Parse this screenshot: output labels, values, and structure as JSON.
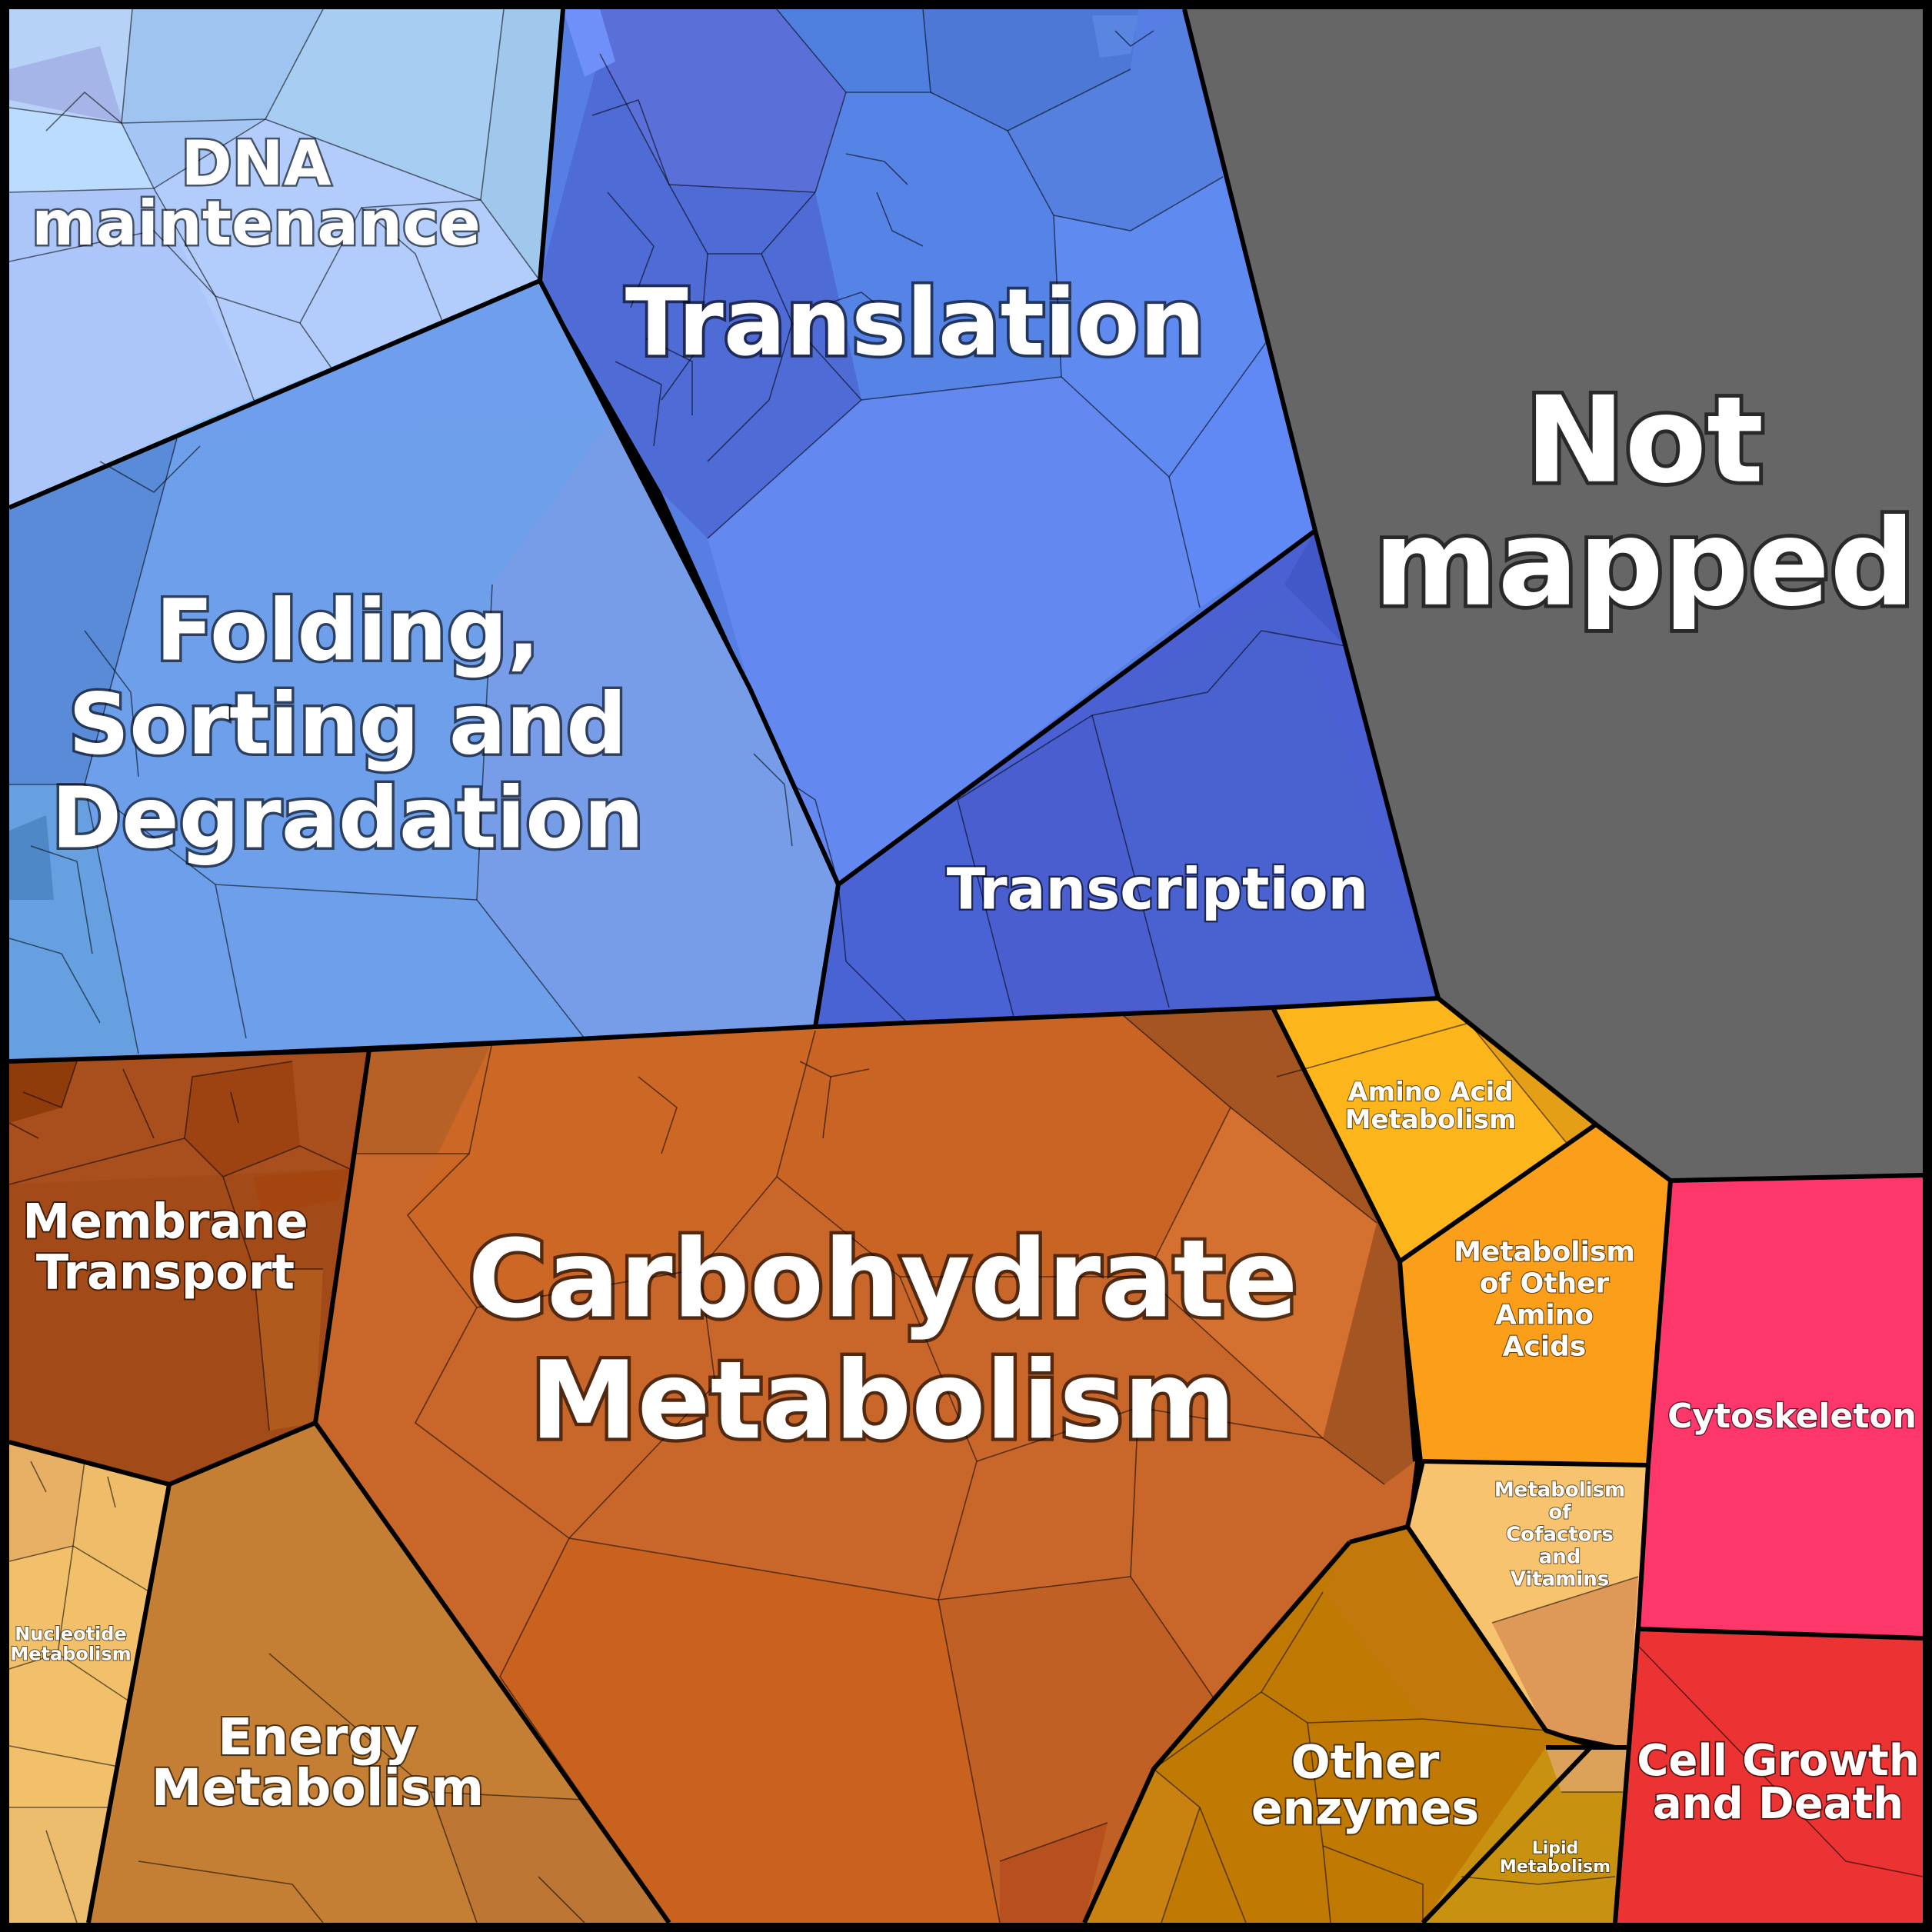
{
  "categories": [
    {
      "id": "dna-maintenance",
      "label": [
        "DNA",
        "maintenance"
      ],
      "color": "#a5c6f4"
    },
    {
      "id": "translation",
      "label": [
        "Translation"
      ],
      "color": "#567ee3"
    },
    {
      "id": "folding-sorting-degradation",
      "label": [
        "Folding,",
        "Sorting and",
        "Degradation"
      ],
      "color": "#6f9eed"
    },
    {
      "id": "transcription",
      "label": [
        "Transcription"
      ],
      "color": "#4a60d3"
    },
    {
      "id": "not-mapped",
      "label": [
        "Not",
        "mapped"
      ],
      "color": "#666666"
    },
    {
      "id": "membrane-transport",
      "label": [
        "Membrane",
        "Transport"
      ],
      "color": "#a24a18"
    },
    {
      "id": "carbohydrate-metabolism",
      "label": [
        "Carbohydrate",
        "Metabolism"
      ],
      "color": "#c9662a"
    },
    {
      "id": "amino-acid-metabolism",
      "label": [
        "Amino Acid",
        "Metabolism"
      ],
      "color": "#fdb51c"
    },
    {
      "id": "metabolism-other-amino-acids",
      "label": [
        "Metabolism",
        "of Other",
        "Amino",
        "Acids"
      ],
      "color": "#fb9f1a"
    },
    {
      "id": "cytoskeleton",
      "label": [
        "Cytoskeleton"
      ],
      "color": "#fe376b"
    },
    {
      "id": "metabolism-cofactors-vitamins",
      "label": [
        "Metabolism",
        "of",
        "Cofactors",
        "and",
        "Vitamins"
      ],
      "color": "#f8c36e"
    },
    {
      "id": "nucleotide-metabolism",
      "label": [
        "Nucleotide",
        "Metabolism"
      ],
      "color": "#f2c06a"
    },
    {
      "id": "energy-metabolism",
      "label": [
        "Energy",
        "Metabolism"
      ],
      "color": "#c47f35"
    },
    {
      "id": "other-enzymes",
      "label": [
        "Other",
        "enzymes"
      ],
      "color": "#c07a04"
    },
    {
      "id": "lipid-metabolism",
      "label": [
        "Lipid",
        "Metabolism"
      ],
      "color": "#c8910f"
    },
    {
      "id": "cell-growth-death",
      "label": [
        "Cell Growth",
        "and Death"
      ],
      "color": "#ec3333"
    }
  ]
}
